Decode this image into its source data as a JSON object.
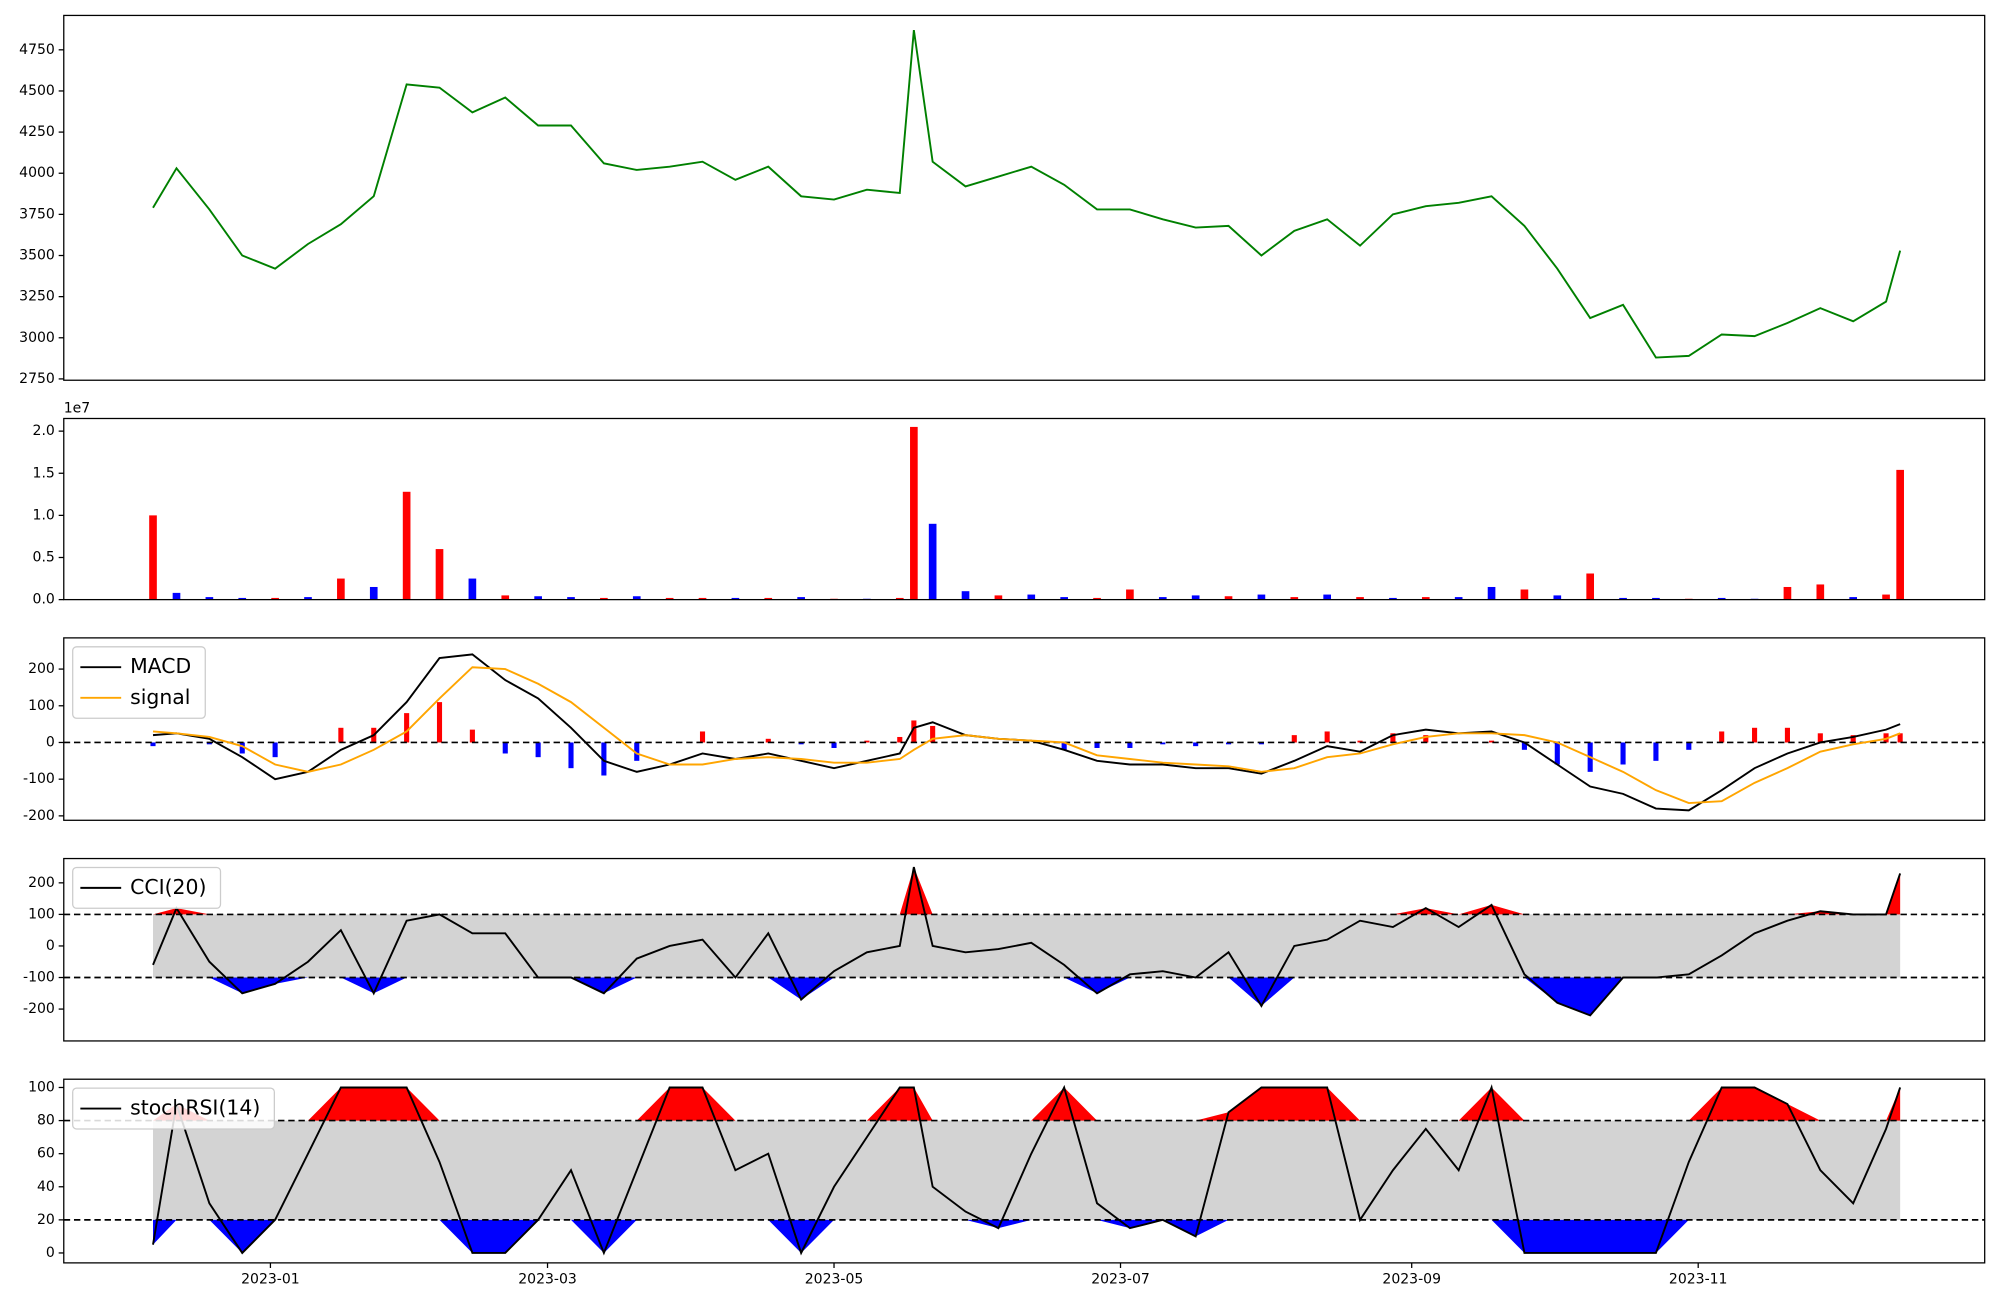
{
  "chart_data": [
    {
      "type": "line",
      "xlim": [
        "2022-11-18",
        "2024-01-01"
      ],
      "ylim": [
        2742,
        4959
      ],
      "yticks": [
        2750,
        3000,
        3250,
        3500,
        3750,
        4000,
        4250,
        4500,
        4750
      ],
      "x": [
        "2022-12-07",
        "2022-12-12",
        "2022-12-19",
        "2022-12-26",
        "2023-01-02",
        "2023-01-09",
        "2023-01-16",
        "2023-01-23",
        "2023-01-30",
        "2023-02-06",
        "2023-02-13",
        "2023-02-20",
        "2023-02-27",
        "2023-03-06",
        "2023-03-13",
        "2023-03-20",
        "2023-03-27",
        "2023-04-03",
        "2023-04-10",
        "2023-04-17",
        "2023-04-24",
        "2023-05-01",
        "2023-05-08",
        "2023-05-15",
        "2023-05-18",
        "2023-05-22",
        "2023-05-29",
        "2023-06-05",
        "2023-06-12",
        "2023-06-19",
        "2023-06-26",
        "2023-07-03",
        "2023-07-10",
        "2023-07-17",
        "2023-07-24",
        "2023-07-31",
        "2023-08-07",
        "2023-08-14",
        "2023-08-21",
        "2023-08-28",
        "2023-09-04",
        "2023-09-11",
        "2023-09-18",
        "2023-09-25",
        "2023-10-02",
        "2023-10-09",
        "2023-10-16",
        "2023-10-23",
        "2023-10-30",
        "2023-11-06",
        "2023-11-13",
        "2023-11-20",
        "2023-11-27",
        "2023-12-04",
        "2023-12-11",
        "2023-12-14"
      ],
      "series": [
        {
          "color": "green",
          "values": [
            3790,
            4030,
            3780,
            3500,
            3420,
            3570,
            3690,
            3860,
            4540,
            4520,
            4370,
            4460,
            4290,
            4290,
            4060,
            4020,
            4040,
            4070,
            3960,
            4040,
            3860,
            3840,
            3900,
            3880,
            4870,
            4070,
            3920,
            3980,
            4040,
            3930,
            3780,
            3780,
            3720,
            3670,
            3680,
            3500,
            3650,
            3720,
            3560,
            3750,
            3800,
            3820,
            3860,
            3680,
            3420,
            3120,
            3200,
            2880,
            2890,
            3020,
            3010,
            3090,
            3180,
            3100,
            3220,
            3530
          ]
        }
      ]
    },
    {
      "type": "bar",
      "xlim": [
        "2022-11-18",
        "2024-01-01"
      ],
      "ylim": [
        0,
        2.15
      ],
      "y_offset_label": "1e7",
      "yticks": [
        {
          "value": 0,
          "label": "0.0"
        },
        0.5,
        {
          "value": 1,
          "label": "1.0"
        },
        1.5,
        {
          "value": 2,
          "label": "2.0"
        }
      ],
      "x": [
        "2022-12-07",
        "2022-12-12",
        "2022-12-19",
        "2022-12-26",
        "2023-01-02",
        "2023-01-09",
        "2023-01-16",
        "2023-01-23",
        "2023-01-30",
        "2023-02-06",
        "2023-02-13",
        "2023-02-20",
        "2023-02-27",
        "2023-03-06",
        "2023-03-13",
        "2023-03-20",
        "2023-03-27",
        "2023-04-03",
        "2023-04-10",
        "2023-04-17",
        "2023-04-24",
        "2023-05-01",
        "2023-05-08",
        "2023-05-15",
        "2023-05-18",
        "2023-05-22",
        "2023-05-29",
        "2023-06-05",
        "2023-06-12",
        "2023-06-19",
        "2023-06-26",
        "2023-07-03",
        "2023-07-10",
        "2023-07-17",
        "2023-07-24",
        "2023-07-31",
        "2023-08-07",
        "2023-08-14",
        "2023-08-21",
        "2023-08-28",
        "2023-09-04",
        "2023-09-11",
        "2023-09-18",
        "2023-09-25",
        "2023-10-02",
        "2023-10-09",
        "2023-10-16",
        "2023-10-23",
        "2023-10-30",
        "2023-11-06",
        "2023-11-13",
        "2023-11-20",
        "2023-11-27",
        "2023-12-04",
        "2023-12-11",
        "2023-12-14"
      ],
      "values": [
        1.0,
        0.08,
        0.03,
        0.02,
        0.02,
        0.03,
        0.25,
        0.15,
        1.28,
        0.6,
        0.25,
        0.05,
        0.04,
        0.03,
        0.02,
        0.04,
        0.02,
        0.02,
        0.02,
        0.02,
        0.03,
        0.01,
        0.01,
        0.02,
        2.05,
        0.9,
        0.1,
        0.05,
        0.06,
        0.03,
        0.02,
        0.12,
        0.03,
        0.05,
        0.04,
        0.06,
        0.03,
        0.06,
        0.03,
        0.02,
        0.03,
        0.03,
        0.15,
        0.12,
        0.05,
        0.31,
        0.02,
        0.02,
        0.01,
        0.02,
        0.01,
        0.15,
        0.18,
        0.03,
        0.06,
        1.54
      ],
      "colors": [
        "red",
        "blue",
        "blue",
        "blue",
        "red",
        "blue",
        "red",
        "blue",
        "red",
        "red",
        "blue",
        "red",
        "blue",
        "blue",
        "red",
        "blue",
        "red",
        "red",
        "blue",
        "red",
        "blue",
        "red",
        "blue",
        "red",
        "red",
        "blue",
        "blue",
        "red",
        "blue",
        "blue",
        "red",
        "red",
        "blue",
        "blue",
        "red",
        "blue",
        "red",
        "blue",
        "red",
        "blue",
        "red",
        "blue",
        "blue",
        "red",
        "blue",
        "red",
        "blue",
        "blue",
        "red",
        "blue",
        "blue",
        "red",
        "red",
        "blue",
        "red",
        "red"
      ]
    },
    {
      "type": "line",
      "xlim": [
        "2022-11-18",
        "2024-01-01"
      ],
      "ylim": [
        -212,
        285
      ],
      "yticks": [
        -200,
        -100,
        0,
        100,
        200
      ],
      "hlines": [
        0
      ],
      "x": [
        "2022-12-07",
        "2022-12-12",
        "2022-12-19",
        "2022-12-26",
        "2023-01-02",
        "2023-01-09",
        "2023-01-16",
        "2023-01-23",
        "2023-01-30",
        "2023-02-06",
        "2023-02-13",
        "2023-02-20",
        "2023-02-27",
        "2023-03-06",
        "2023-03-13",
        "2023-03-20",
        "2023-03-27",
        "2023-04-03",
        "2023-04-10",
        "2023-04-17",
        "2023-04-24",
        "2023-05-01",
        "2023-05-08",
        "2023-05-15",
        "2023-05-18",
        "2023-05-22",
        "2023-05-29",
        "2023-06-05",
        "2023-06-12",
        "2023-06-19",
        "2023-06-26",
        "2023-07-03",
        "2023-07-10",
        "2023-07-17",
        "2023-07-24",
        "2023-07-31",
        "2023-08-07",
        "2023-08-14",
        "2023-08-21",
        "2023-08-28",
        "2023-09-04",
        "2023-09-11",
        "2023-09-18",
        "2023-09-25",
        "2023-10-02",
        "2023-10-09",
        "2023-10-16",
        "2023-10-23",
        "2023-10-30",
        "2023-11-06",
        "2023-11-13",
        "2023-11-20",
        "2023-11-27",
        "2023-12-04",
        "2023-12-11",
        "2023-12-14"
      ],
      "histogram": {
        "positive_color": "red",
        "negative_color": "blue",
        "values": [
          -10,
          0,
          -5,
          -30,
          -40,
          0,
          40,
          40,
          80,
          110,
          35,
          -30,
          -40,
          -70,
          -90,
          -50,
          0,
          30,
          0,
          10,
          -5,
          -15,
          5,
          15,
          60,
          45,
          0,
          0,
          0,
          -20,
          -15,
          -15,
          -5,
          -10,
          -5,
          -5,
          20,
          30,
          5,
          25,
          20,
          0,
          5,
          -20,
          -60,
          -80,
          -60,
          -50,
          -20,
          30,
          40,
          40,
          25,
          20,
          25,
          25
        ]
      },
      "series": [
        {
          "name": "MACD",
          "color": "black",
          "values": [
            20,
            25,
            10,
            -40,
            -100,
            -80,
            -20,
            20,
            110,
            230,
            240,
            170,
            120,
            40,
            -50,
            -80,
            -60,
            -30,
            -45,
            -30,
            -50,
            -70,
            -50,
            -30,
            40,
            55,
            20,
            10,
            5,
            -20,
            -50,
            -60,
            -60,
            -70,
            -70,
            -85,
            -50,
            -10,
            -25,
            20,
            35,
            25,
            30,
            0,
            -60,
            -120,
            -140,
            -180,
            -185,
            -130,
            -70,
            -30,
            0,
            15,
            35,
            50
          ]
        },
        {
          "name": "signal",
          "color": "orange",
          "values": [
            30,
            25,
            15,
            -10,
            -60,
            -80,
            -60,
            -20,
            30,
            120,
            205,
            200,
            160,
            110,
            40,
            -30,
            -60,
            -60,
            -45,
            -40,
            -45,
            -55,
            -55,
            -45,
            -20,
            10,
            20,
            10,
            5,
            0,
            -35,
            -45,
            -55,
            -60,
            -65,
            -80,
            -70,
            -40,
            -30,
            -5,
            15,
            25,
            25,
            20,
            0,
            -40,
            -80,
            -130,
            -165,
            -160,
            -110,
            -70,
            -25,
            -5,
            10,
            25
          ]
        }
      ]
    },
    {
      "type": "line",
      "xlim": [
        "2022-11-18",
        "2024-01-01"
      ],
      "ylim": [
        -301,
        277
      ],
      "yticks": [
        -200,
        -100,
        0,
        100,
        200
      ],
      "hlines": [
        100,
        -100
      ],
      "fill": {
        "above": "red",
        "between": "#d3d3d3",
        "below": "blue"
      },
      "x": [
        "2022-12-07",
        "2022-12-12",
        "2022-12-19",
        "2022-12-26",
        "2023-01-02",
        "2023-01-09",
        "2023-01-16",
        "2023-01-23",
        "2023-01-30",
        "2023-02-06",
        "2023-02-13",
        "2023-02-20",
        "2023-02-27",
        "2023-03-06",
        "2023-03-13",
        "2023-03-20",
        "2023-03-27",
        "2023-04-03",
        "2023-04-10",
        "2023-04-17",
        "2023-04-24",
        "2023-05-01",
        "2023-05-08",
        "2023-05-15",
        "2023-05-18",
        "2023-05-22",
        "2023-05-29",
        "2023-06-05",
        "2023-06-12",
        "2023-06-19",
        "2023-06-26",
        "2023-07-03",
        "2023-07-10",
        "2023-07-17",
        "2023-07-24",
        "2023-07-31",
        "2023-08-07",
        "2023-08-14",
        "2023-08-21",
        "2023-08-28",
        "2023-09-04",
        "2023-09-11",
        "2023-09-18",
        "2023-09-25",
        "2023-10-02",
        "2023-10-09",
        "2023-10-16",
        "2023-10-23",
        "2023-10-30",
        "2023-11-06",
        "2023-11-13",
        "2023-11-20",
        "2023-11-27",
        "2023-12-04",
        "2023-12-11",
        "2023-12-14"
      ],
      "series": [
        {
          "name": "CCI(20)",
          "color": "black",
          "values": [
            -60,
            120,
            -50,
            -150,
            -120,
            -50,
            50,
            -150,
            80,
            100,
            40,
            40,
            -100,
            -100,
            -150,
            -40,
            0,
            20,
            -100,
            40,
            -170,
            -80,
            -20,
            0,
            250,
            0,
            -20,
            -10,
            10,
            -60,
            -150,
            -90,
            -80,
            -100,
            -20,
            -190,
            0,
            20,
            80,
            60,
            120,
            60,
            130,
            -90,
            -180,
            -220,
            -100,
            -100,
            -90,
            -30,
            40,
            80,
            110,
            100,
            100,
            230
          ]
        }
      ]
    },
    {
      "type": "line",
      "xlim": [
        "2022-11-18",
        "2024-01-01"
      ],
      "ylim": [
        -6,
        105
      ],
      "yticks": [
        0,
        20,
        40,
        60,
        80,
        100
      ],
      "hlines": [
        80,
        20
      ],
      "fill": {
        "above": "red",
        "between": "#d3d3d3",
        "below": "blue"
      },
      "xticks": [
        {
          "value": "2023-01-01",
          "label": "2023-01"
        },
        {
          "value": "2023-03-01",
          "label": "2023-03"
        },
        {
          "value": "2023-05-01",
          "label": "2023-05"
        },
        {
          "value": "2023-07-01",
          "label": "2023-07"
        },
        {
          "value": "2023-09-01",
          "label": "2023-09"
        },
        {
          "value": "2023-11-01",
          "label": "2023-11"
        }
      ],
      "x": [
        "2022-12-07",
        "2022-12-12",
        "2022-12-19",
        "2022-12-26",
        "2023-01-02",
        "2023-01-09",
        "2023-01-16",
        "2023-01-23",
        "2023-01-30",
        "2023-02-06",
        "2023-02-13",
        "2023-02-20",
        "2023-02-27",
        "2023-03-06",
        "2023-03-13",
        "2023-03-20",
        "2023-03-27",
        "2023-04-03",
        "2023-04-10",
        "2023-04-17",
        "2023-04-24",
        "2023-05-01",
        "2023-05-08",
        "2023-05-15",
        "2023-05-18",
        "2023-05-22",
        "2023-05-29",
        "2023-06-05",
        "2023-06-12",
        "2023-06-19",
        "2023-06-26",
        "2023-07-03",
        "2023-07-10",
        "2023-07-17",
        "2023-07-24",
        "2023-07-31",
        "2023-08-07",
        "2023-08-14",
        "2023-08-21",
        "2023-08-28",
        "2023-09-04",
        "2023-09-11",
        "2023-09-18",
        "2023-09-25",
        "2023-10-02",
        "2023-10-09",
        "2023-10-16",
        "2023-10-23",
        "2023-10-30",
        "2023-11-06",
        "2023-11-13",
        "2023-11-20",
        "2023-11-27",
        "2023-12-04",
        "2023-12-11",
        "2023-12-14"
      ],
      "series": [
        {
          "name": "stochRSI(14)",
          "color": "black",
          "values": [
            5,
            90,
            30,
            0,
            20,
            60,
            100,
            100,
            100,
            55,
            0,
            0,
            20,
            50,
            0,
            50,
            100,
            100,
            50,
            60,
            0,
            40,
            70,
            100,
            100,
            40,
            25,
            15,
            60,
            100,
            30,
            15,
            20,
            10,
            85,
            100,
            100,
            100,
            20,
            50,
            75,
            50,
            100,
            0,
            0,
            0,
            0,
            0,
            55,
            100,
            100,
            90,
            50,
            30,
            75,
            100
          ]
        }
      ]
    }
  ]
}
